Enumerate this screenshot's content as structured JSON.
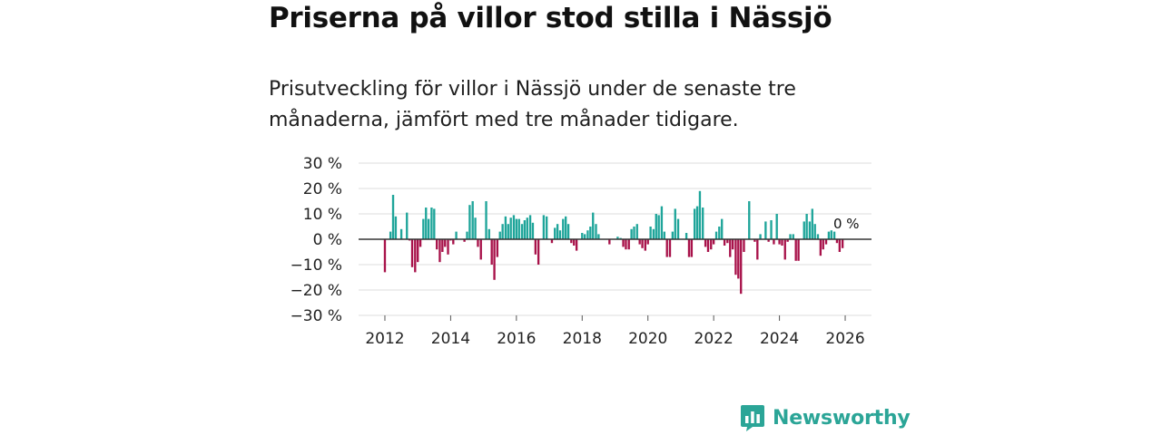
{
  "header": {
    "title": "Priserna på villor stod stilla i Nässjö",
    "subtitle": "Prisutveckling för villor i Nässjö under de senaste tre månaderna, jämfört med tre månader tidigare."
  },
  "brand": {
    "name": "Newsworthy"
  },
  "colors": {
    "positive": "#1fa59a",
    "negative": "#a8124a",
    "grid": "#dddddd",
    "zero": "#333333"
  },
  "chart_data": {
    "type": "bar",
    "title": "Priserna på villor stod stilla i Nässjö",
    "xlabel": "",
    "ylabel": "",
    "ylim": [
      -30,
      30
    ],
    "xlim": [
      2011.2,
      2026.8
    ],
    "yticks": [
      30,
      20,
      10,
      0,
      -10,
      -20,
      -30
    ],
    "ytick_labels": [
      "30 %",
      "20 %",
      "10 %",
      "0 %",
      "−10 %",
      "−20 %",
      "−30 %"
    ],
    "xticks": [
      2012,
      2014,
      2016,
      2018,
      2020,
      2022,
      2024,
      2026
    ],
    "xtick_labels": [
      "2012",
      "2014",
      "2016",
      "2018",
      "2020",
      "2022",
      "2024",
      "2026"
    ],
    "end_label": "0 %",
    "series": [
      {
        "name": "Prisutveckling",
        "values": [
          [
            2012.0,
            -13
          ],
          [
            2012.17,
            3
          ],
          [
            2012.25,
            17.5
          ],
          [
            2012.33,
            9
          ],
          [
            2012.5,
            4
          ],
          [
            2012.67,
            10.5
          ],
          [
            2012.75,
            -0.5
          ],
          [
            2012.83,
            -11
          ],
          [
            2012.92,
            -13
          ],
          [
            2013.0,
            -9
          ],
          [
            2013.08,
            -3
          ],
          [
            2013.17,
            8
          ],
          [
            2013.25,
            12.5
          ],
          [
            2013.33,
            8
          ],
          [
            2013.42,
            12.5
          ],
          [
            2013.5,
            12
          ],
          [
            2013.58,
            -4
          ],
          [
            2013.67,
            -9
          ],
          [
            2013.75,
            -5
          ],
          [
            2013.83,
            -3
          ],
          [
            2013.92,
            -6
          ],
          [
            2014.0,
            -0.5
          ],
          [
            2014.08,
            -2
          ],
          [
            2014.17,
            3
          ],
          [
            2014.42,
            -1
          ],
          [
            2014.5,
            3
          ],
          [
            2014.58,
            13.5
          ],
          [
            2014.67,
            15
          ],
          [
            2014.75,
            8.5
          ],
          [
            2014.83,
            -3
          ],
          [
            2014.92,
            -8
          ],
          [
            2015.08,
            15
          ],
          [
            2015.17,
            4
          ],
          [
            2015.25,
            -10
          ],
          [
            2015.33,
            -16
          ],
          [
            2015.42,
            -7
          ],
          [
            2015.5,
            3
          ],
          [
            2015.58,
            6
          ],
          [
            2015.67,
            9
          ],
          [
            2015.75,
            6
          ],
          [
            2015.83,
            8.5
          ],
          [
            2015.92,
            9.5
          ],
          [
            2016.0,
            8
          ],
          [
            2016.08,
            8
          ],
          [
            2016.17,
            6
          ],
          [
            2016.25,
            7.5
          ],
          [
            2016.33,
            8.5
          ],
          [
            2016.42,
            9.5
          ],
          [
            2016.5,
            6.5
          ],
          [
            2016.58,
            -6
          ],
          [
            2016.67,
            -10
          ],
          [
            2016.83,
            9.5
          ],
          [
            2016.92,
            9
          ],
          [
            2017.08,
            -1.5
          ],
          [
            2017.17,
            4.5
          ],
          [
            2017.25,
            6
          ],
          [
            2017.33,
            3.5
          ],
          [
            2017.42,
            8
          ],
          [
            2017.5,
            9
          ],
          [
            2017.58,
            6
          ],
          [
            2017.67,
            -1.5
          ],
          [
            2017.75,
            -2.5
          ],
          [
            2017.83,
            -4.5
          ],
          [
            2018.0,
            2.5
          ],
          [
            2018.08,
            2
          ],
          [
            2018.17,
            3.5
          ],
          [
            2018.25,
            5
          ],
          [
            2018.33,
            10.5
          ],
          [
            2018.42,
            6
          ],
          [
            2018.5,
            2
          ],
          [
            2018.83,
            -2
          ],
          [
            2019.08,
            1
          ],
          [
            2019.17,
            0.5
          ],
          [
            2019.25,
            -3
          ],
          [
            2019.33,
            -4
          ],
          [
            2019.42,
            -4
          ],
          [
            2019.5,
            4
          ],
          [
            2019.58,
            5
          ],
          [
            2019.67,
            6
          ],
          [
            2019.75,
            -2
          ],
          [
            2019.83,
            -3.5
          ],
          [
            2019.92,
            -4.5
          ],
          [
            2020.0,
            -2
          ],
          [
            2020.08,
            5
          ],
          [
            2020.17,
            4
          ],
          [
            2020.25,
            10
          ],
          [
            2020.33,
            9.5
          ],
          [
            2020.42,
            13
          ],
          [
            2020.5,
            3
          ],
          [
            2020.58,
            -7
          ],
          [
            2020.67,
            -7
          ],
          [
            2020.75,
            3
          ],
          [
            2020.83,
            12
          ],
          [
            2020.92,
            8
          ],
          [
            2021.17,
            2.5
          ],
          [
            2021.25,
            -7
          ],
          [
            2021.33,
            -7
          ],
          [
            2021.42,
            12
          ],
          [
            2021.5,
            13
          ],
          [
            2021.58,
            19
          ],
          [
            2021.67,
            12.5
          ],
          [
            2021.75,
            -3
          ],
          [
            2021.83,
            -5
          ],
          [
            2021.92,
            -4
          ],
          [
            2022.0,
            -2
          ],
          [
            2022.08,
            3
          ],
          [
            2022.17,
            5
          ],
          [
            2022.25,
            8
          ],
          [
            2022.33,
            -2.5
          ],
          [
            2022.42,
            -1.5
          ],
          [
            2022.5,
            -7
          ],
          [
            2022.58,
            -4
          ],
          [
            2022.67,
            -14
          ],
          [
            2022.75,
            -15.5
          ],
          [
            2022.83,
            -21.5
          ],
          [
            2022.92,
            -5
          ],
          [
            2023.08,
            15
          ],
          [
            2023.25,
            -1
          ],
          [
            2023.33,
            -8
          ],
          [
            2023.42,
            2
          ],
          [
            2023.58,
            7
          ],
          [
            2023.67,
            -1
          ],
          [
            2023.75,
            7.5
          ],
          [
            2023.83,
            -2
          ],
          [
            2023.92,
            10
          ],
          [
            2024.0,
            -2
          ],
          [
            2024.08,
            -2.5
          ],
          [
            2024.17,
            -8
          ],
          [
            2024.25,
            -1
          ],
          [
            2024.33,
            2
          ],
          [
            2024.42,
            2
          ],
          [
            2024.5,
            -8.5
          ],
          [
            2024.58,
            -8.5
          ],
          [
            2024.75,
            7
          ],
          [
            2024.83,
            10
          ],
          [
            2024.92,
            7
          ],
          [
            2025.0,
            12
          ],
          [
            2025.08,
            6
          ],
          [
            2025.17,
            2
          ],
          [
            2025.25,
            -6.5
          ],
          [
            2025.33,
            -4
          ],
          [
            2025.42,
            -2
          ],
          [
            2025.5,
            3
          ],
          [
            2025.58,
            3.5
          ],
          [
            2025.67,
            3
          ],
          [
            2025.75,
            -1.5
          ],
          [
            2025.83,
            -5
          ],
          [
            2025.92,
            -3.5
          ],
          [
            2026.0,
            0
          ]
        ]
      }
    ]
  }
}
